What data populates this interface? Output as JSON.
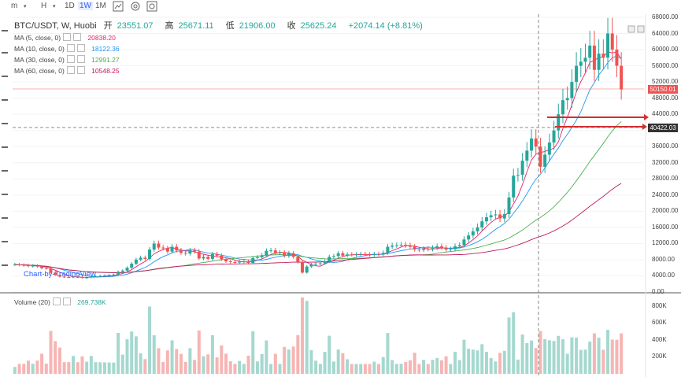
{
  "toolbar": {
    "items": [
      "m",
      "H",
      "1D",
      "1W",
      "1M"
    ],
    "active": "1W"
  },
  "header": {
    "symbol": "BTC/USDT, W, Huobi",
    "open_label": "开",
    "open": "23551.07",
    "high_label": "高",
    "high": "25671.11",
    "low_label": "低",
    "low": "21906.00",
    "close_label": "收",
    "close": "25625.24",
    "change": "+2074.14 (+8.81%)"
  },
  "legend": [
    {
      "label": "MA (5, close, 0)",
      "value": "20838.20",
      "color": "#e91e63"
    },
    {
      "label": "MA (10, close, 0)",
      "value": "18122.36",
      "color": "#2196f3"
    },
    {
      "label": "MA (30, close, 0)",
      "value": "12991.27",
      "color": "#4caf50"
    },
    {
      "label": "MA (60, close, 0)",
      "value": "10548.25",
      "color": "#c2185b"
    }
  ],
  "volume_legend": {
    "label": "Volume (20)",
    "value": "269.738K"
  },
  "watermark": "Chart-by-TradingView",
  "price_tags": [
    {
      "value": "50150.01",
      "color": "#ef5350"
    },
    {
      "value": "40422.03",
      "color": "#333333"
    }
  ],
  "chart_data": {
    "type": "candlestick",
    "price_axis": {
      "ticks": [
        "68000.00",
        "64000.00",
        "60000.00",
        "56000.00",
        "52000.00",
        "48000.00",
        "44000.00",
        "40000.00",
        "36000.00",
        "32000.00",
        "28000.00",
        "24000.00",
        "20000.00",
        "16000.00",
        "12000.00",
        "8000.00",
        "4000.00",
        "0.00"
      ],
      "range": [
        0,
        68000
      ]
    },
    "volume_axis": {
      "ticks": [
        "800K",
        "600K",
        "400K",
        "200K"
      ],
      "range": [
        0,
        900000
      ]
    },
    "closes": [
      6800,
      6700,
      6600,
      6400,
      6500,
      6300,
      5900,
      5800,
      4800,
      4200,
      3800,
      3700,
      3600,
      3800,
      3700,
      3500,
      3600,
      3800,
      3900,
      4000,
      4100,
      4200,
      4300,
      5000,
      5300,
      6000,
      7000,
      8000,
      8500,
      8200,
      10500,
      12000,
      11000,
      10800,
      10000,
      11200,
      10300,
      9700,
      9500,
      10300,
      10000,
      8300,
      8700,
      8200,
      9400,
      9000,
      8100,
      7600,
      7400,
      7300,
      7500,
      7600,
      7200,
      8400,
      8600,
      9100,
      10200,
      10300,
      9700,
      9800,
      8900,
      9600,
      8700,
      7400,
      4800,
      6300,
      6800,
      7000,
      7100,
      7600,
      8700,
      8900,
      9600,
      9000,
      9300,
      9200,
      9300,
      9400,
      9300,
      9200,
      9400,
      9300,
      9700,
      11200,
      11500,
      11600,
      11700,
      11500,
      11200,
      10500,
      10400,
      10700,
      10600,
      10900,
      11300,
      11000,
      10500,
      10600,
      11300,
      11600,
      13000,
      14000,
      15000,
      16000,
      17500,
      18500,
      19000,
      19200,
      18200,
      19300,
      23400,
      28800,
      29000,
      32500,
      35000,
      38000,
      36000,
      31000,
      34000,
      37000,
      40000,
      44000,
      47500,
      48000,
      52000,
      56000,
      57000,
      58000,
      61000,
      55000,
      59000,
      58000,
      64000,
      60000,
      56000,
      50150
    ]
  }
}
